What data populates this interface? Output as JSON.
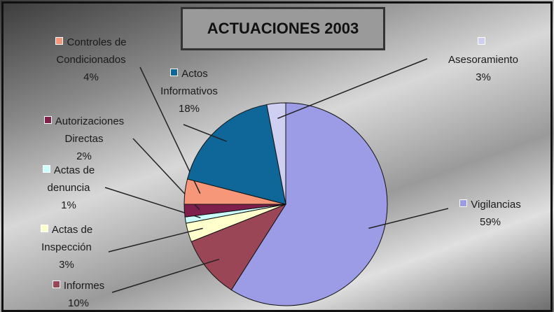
{
  "chart_data": {
    "type": "pie",
    "title": "ACTUACIONES 2003",
    "categories": [
      "Vigilancias",
      "Informes",
      "Actas de Inspección",
      "Actas de denuncia",
      "Autorizaciones Directas",
      "Controles de Condicionados",
      "Actos Informativos",
      "Asesoramiento"
    ],
    "values": [
      59,
      10,
      3,
      1,
      2,
      4,
      18,
      3
    ],
    "value_labels": [
      "59%",
      "10%",
      "3%",
      "1%",
      "2%",
      "4%",
      "18%",
      "3%"
    ],
    "colors": [
      "#9c9ce6",
      "#9b4656",
      "#ffffcc",
      "#ccffff",
      "#7e1f4c",
      "#f7977a",
      "#0f6699",
      "#cfcff2"
    ]
  }
}
